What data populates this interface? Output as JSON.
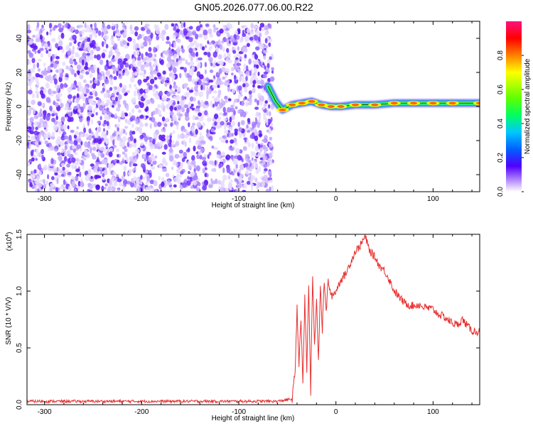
{
  "title": "GN05.2026.077.06.00.R22",
  "chart_data": [
    {
      "type": "heatmap",
      "name": "spectrogram",
      "xlabel": "Height of straight line (km)",
      "ylabel": "Frequency (Hz)",
      "xlim": [
        -318,
        148
      ],
      "ylim": [
        -50,
        50
      ],
      "xticks": [
        -300,
        -200,
        -100,
        0,
        100
      ],
      "xtick_labels": [
        "-300",
        "-200",
        "-100",
        "0",
        "100"
      ],
      "yticks": [
        -40,
        -20,
        0,
        20,
        40
      ],
      "ytick_labels": [
        "-40",
        "-20",
        "0",
        "20",
        "40"
      ],
      "noise_region": {
        "x": [
          -318,
          -65
        ],
        "y": [
          -50,
          48
        ],
        "note": "scattered low-amplitude purple speckle"
      },
      "signal_track": {
        "x": [
          -70,
          -62,
          -55,
          -45,
          -35,
          -25,
          -15,
          -5,
          5,
          20,
          40,
          60,
          80,
          100,
          120,
          148
        ],
        "freq_hz": [
          12,
          3,
          -2,
          1,
          2,
          3,
          1,
          0,
          0,
          1,
          1,
          2,
          2,
          2,
          2,
          2
        ],
        "amplitude": [
          0.3,
          0.6,
          0.7,
          0.75,
          0.8,
          0.8,
          0.8,
          0.85,
          0.85,
          0.8,
          0.85,
          0.9,
          0.9,
          0.85,
          0.8,
          0.8
        ]
      },
      "colorbar": {
        "label": "Normalized spectral amplitude",
        "range": [
          0,
          1
        ],
        "ticks": [
          0.0,
          0.2,
          0.4,
          0.6,
          0.8
        ],
        "tick_labels": [
          "0.0",
          "0.2",
          "0.4",
          "0.6",
          "0.8"
        ],
        "colormap": [
          "#ffffff",
          "#c8a8ff",
          "#5000ff",
          "#0060ff",
          "#00c8ff",
          "#00ff60",
          "#60ff00",
          "#ffff00",
          "#ff8000",
          "#ff0000",
          "#ff1080"
        ]
      }
    },
    {
      "type": "line",
      "name": "snr",
      "xlabel": "Height of straight line (km)",
      "ylabel": "SNR (10 * V/V)",
      "scale_label": "(x10",
      "scale_exponent": "4",
      "xlim": [
        -318,
        148
      ],
      "ylim": [
        0,
        1.5
      ],
      "xticks": [
        -300,
        -200,
        -100,
        0,
        100
      ],
      "xtick_labels": [
        "-300",
        "-200",
        "-100",
        "0",
        "100"
      ],
      "yticks": [
        0.0,
        0.5,
        1.0,
        1.5
      ],
      "ytick_labels": [
        "0.0",
        "0.5",
        "1.0",
        "1.5"
      ],
      "series": [
        {
          "name": "SNR",
          "color": "#e83030",
          "x": [
            -318,
            -300,
            -250,
            -200,
            -150,
            -100,
            -60,
            -45,
            -42,
            -40,
            -38,
            -36,
            -34,
            -32,
            -30,
            -28,
            -26,
            -24,
            -22,
            -20,
            -18,
            -16,
            -14,
            -12,
            -10,
            -8,
            -5,
            0,
            5,
            10,
            15,
            20,
            25,
            30,
            35,
            40,
            45,
            50,
            55,
            60,
            65,
            70,
            75,
            80,
            85,
            90,
            95,
            100,
            105,
            110,
            115,
            120,
            125,
            130,
            135,
            140,
            148
          ],
          "values": [
            0.03,
            0.03,
            0.03,
            0.03,
            0.03,
            0.03,
            0.03,
            0.05,
            0.3,
            0.85,
            0.35,
            0.75,
            0.2,
            0.95,
            0.3,
            1.05,
            0.1,
            1.15,
            0.5,
            0.95,
            0.4,
            1.05,
            0.65,
            1.1,
            0.8,
            1.1,
            0.95,
            1.0,
            1.1,
            1.15,
            1.25,
            1.35,
            1.4,
            1.48,
            1.35,
            1.3,
            1.22,
            1.18,
            1.1,
            1.0,
            0.95,
            0.9,
            0.88,
            0.87,
            0.88,
            0.86,
            0.85,
            0.84,
            0.8,
            0.78,
            0.75,
            0.72,
            0.7,
            0.75,
            0.7,
            0.65,
            0.64
          ]
        }
      ]
    }
  ]
}
